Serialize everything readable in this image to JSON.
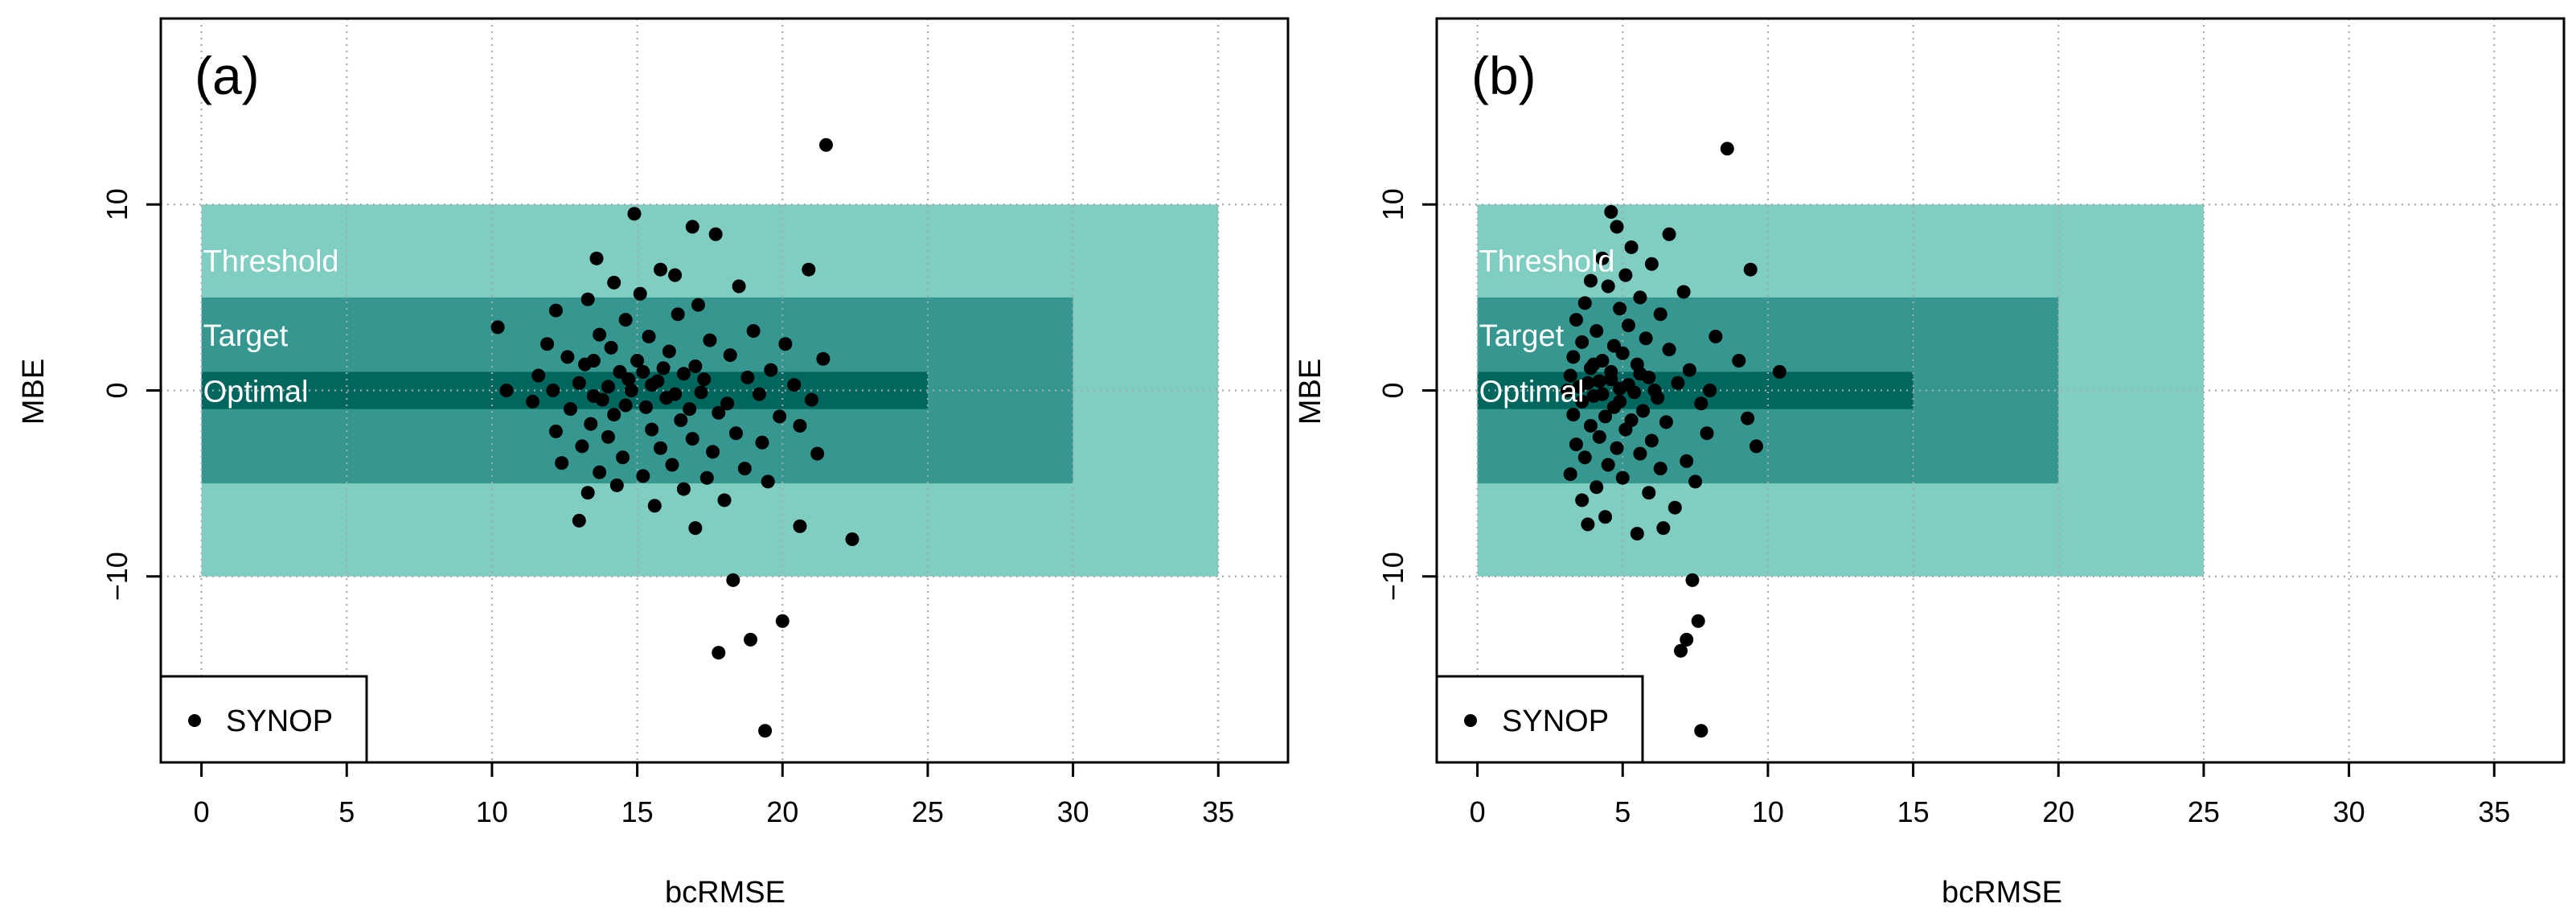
{
  "chart_data": [
    {
      "panel": "(a)",
      "type": "scatter",
      "xlabel": "bcRMSE",
      "ylabel": "MBE",
      "xlim": [
        -1.4,
        37.4
      ],
      "ylim": [
        -20,
        20
      ],
      "xticks": [
        0,
        5,
        10,
        15,
        20,
        25,
        30,
        35
      ],
      "yticks": [
        -10,
        0,
        10
      ],
      "ytick_labels": [
        "−10",
        "0",
        "10"
      ],
      "grid": true,
      "legend": {
        "position": "bottom-left",
        "label": "SYNOP"
      },
      "zones": [
        {
          "name": "Threshold",
          "xmax": 35,
          "ymin": -10,
          "ymax": 10,
          "color": "#80cdc1",
          "label_y": 7
        },
        {
          "name": "Target",
          "xmax": 30,
          "ymin": -5,
          "ymax": 5,
          "color": "#35978f",
          "label_y": 3
        },
        {
          "name": "Optimal",
          "xmax": 25,
          "ymin": -1,
          "ymax": 1,
          "color": "#01665e",
          "label_y": 0
        }
      ],
      "series": [
        {
          "name": "SYNOP",
          "color": "#000000",
          "points": [
            [
              21.5,
              13.2
            ],
            [
              14.9,
              9.5
            ],
            [
              16.9,
              8.8
            ],
            [
              17.7,
              8.4
            ],
            [
              13.6,
              7.1
            ],
            [
              15.8,
              6.5
            ],
            [
              20.9,
              6.5
            ],
            [
              16.3,
              6.2
            ],
            [
              14.2,
              5.8
            ],
            [
              18.5,
              5.6
            ],
            [
              15.1,
              5.2
            ],
            [
              13.3,
              4.9
            ],
            [
              17.1,
              4.6
            ],
            [
              12.2,
              4.3
            ],
            [
              16.4,
              4.1
            ],
            [
              14.6,
              3.8
            ],
            [
              10.2,
              3.4
            ],
            [
              19.0,
              3.2
            ],
            [
              13.7,
              3.0
            ],
            [
              15.4,
              2.9
            ],
            [
              17.5,
              2.7
            ],
            [
              11.9,
              2.5
            ],
            [
              20.1,
              2.5
            ],
            [
              14.1,
              2.3
            ],
            [
              16.1,
              2.1
            ],
            [
              18.2,
              1.9
            ],
            [
              12.6,
              1.8
            ],
            [
              15.0,
              1.6
            ],
            [
              21.4,
              1.7
            ],
            [
              13.2,
              1.4
            ],
            [
              17.0,
              1.3
            ],
            [
              19.6,
              1.1
            ],
            [
              14.4,
              1.0
            ],
            [
              16.6,
              0.9
            ],
            [
              11.6,
              0.8
            ],
            [
              18.8,
              0.7
            ],
            [
              15.7,
              0.5
            ],
            [
              13.0,
              0.4
            ],
            [
              20.4,
              0.3
            ],
            [
              10.5,
              0.0
            ],
            [
              12.1,
              0.0
            ],
            [
              14.8,
              0.0
            ],
            [
              17.2,
              -0.1
            ],
            [
              19.2,
              -0.2
            ],
            [
              13.5,
              -0.3
            ],
            [
              16.0,
              -0.4
            ],
            [
              21.0,
              -0.5
            ],
            [
              11.4,
              -0.6
            ],
            [
              18.1,
              -0.7
            ],
            [
              15.3,
              -0.9
            ],
            [
              12.7,
              -1.0
            ],
            [
              17.8,
              -1.2
            ],
            [
              14.2,
              -1.3
            ],
            [
              19.9,
              -1.4
            ],
            [
              16.5,
              -1.6
            ],
            [
              13.4,
              -1.8
            ],
            [
              20.6,
              -1.9
            ],
            [
              15.5,
              -2.1
            ],
            [
              12.2,
              -2.2
            ],
            [
              18.4,
              -2.3
            ],
            [
              14.0,
              -2.5
            ],
            [
              16.9,
              -2.6
            ],
            [
              19.3,
              -2.8
            ],
            [
              13.1,
              -3.0
            ],
            [
              15.8,
              -3.1
            ],
            [
              17.6,
              -3.3
            ],
            [
              21.2,
              -3.4
            ],
            [
              14.5,
              -3.6
            ],
            [
              12.4,
              -3.9
            ],
            [
              16.2,
              -4.0
            ],
            [
              18.7,
              -4.2
            ],
            [
              13.7,
              -4.4
            ],
            [
              15.2,
              -4.6
            ],
            [
              17.4,
              -4.7
            ],
            [
              19.5,
              -4.9
            ],
            [
              14.3,
              -5.1
            ],
            [
              16.6,
              -5.3
            ],
            [
              13.3,
              -5.5
            ],
            [
              18.0,
              -5.9
            ],
            [
              15.6,
              -6.2
            ],
            [
              13.0,
              -7.0
            ],
            [
              17.0,
              -7.4
            ],
            [
              20.6,
              -7.3
            ],
            [
              22.4,
              -8.0
            ],
            [
              18.3,
              -10.2
            ],
            [
              20.0,
              -12.4
            ],
            [
              18.9,
              -13.4
            ],
            [
              17.8,
              -14.1
            ],
            [
              19.4,
              -18.3
            ],
            [
              14.7,
              0.6
            ],
            [
              15.9,
              1.2
            ],
            [
              13.8,
              -0.5
            ],
            [
              16.8,
              -1.0
            ],
            [
              14.0,
              0.2
            ],
            [
              15.5,
              0.3
            ],
            [
              16.3,
              -0.2
            ],
            [
              14.6,
              -0.8
            ],
            [
              15.2,
              1.0
            ],
            [
              13.5,
              1.6
            ],
            [
              17.3,
              0.6
            ]
          ]
        }
      ]
    },
    {
      "panel": "(b)",
      "type": "scatter",
      "xlabel": "bcRMSE",
      "ylabel": "MBE",
      "xlim": [
        -1.4,
        37.4
      ],
      "ylim": [
        -20,
        20
      ],
      "xticks": [
        0,
        5,
        10,
        15,
        20,
        25,
        30,
        35
      ],
      "yticks": [
        -10,
        0,
        10
      ],
      "ytick_labels": [
        "−10",
        "0",
        "10"
      ],
      "grid": true,
      "legend": {
        "position": "bottom-left",
        "label": "SYNOP"
      },
      "zones": [
        {
          "name": "Threshold",
          "xmax": 25,
          "ymin": -10,
          "ymax": 10,
          "color": "#80cdc1",
          "label_y": 7
        },
        {
          "name": "Target",
          "xmax": 20,
          "ymin": -5,
          "ymax": 5,
          "color": "#35978f",
          "label_y": 3
        },
        {
          "name": "Optimal",
          "xmax": 15,
          "ymin": -1,
          "ymax": 1,
          "color": "#01665e",
          "label_y": 0
        }
      ],
      "series": [
        {
          "name": "SYNOP",
          "color": "#000000",
          "points": [
            [
              8.6,
              13.0
            ],
            [
              4.6,
              9.6
            ],
            [
              4.8,
              8.8
            ],
            [
              6.6,
              8.4
            ],
            [
              5.3,
              7.7
            ],
            [
              4.3,
              7.1
            ],
            [
              6.0,
              6.8
            ],
            [
              9.4,
              6.5
            ],
            [
              5.1,
              6.2
            ],
            [
              3.9,
              5.9
            ],
            [
              4.5,
              5.6
            ],
            [
              7.1,
              5.3
            ],
            [
              5.6,
              5.0
            ],
            [
              3.7,
              4.7
            ],
            [
              4.9,
              4.4
            ],
            [
              6.3,
              4.1
            ],
            [
              3.4,
              3.8
            ],
            [
              5.2,
              3.5
            ],
            [
              4.1,
              3.2
            ],
            [
              8.2,
              2.9
            ],
            [
              5.8,
              2.8
            ],
            [
              3.6,
              2.6
            ],
            [
              4.7,
              2.4
            ],
            [
              6.6,
              2.2
            ],
            [
              5.0,
              2.0
            ],
            [
              3.3,
              1.8
            ],
            [
              4.3,
              1.6
            ],
            [
              9.0,
              1.6
            ],
            [
              5.5,
              1.4
            ],
            [
              3.9,
              1.2
            ],
            [
              7.3,
              1.1
            ],
            [
              4.6,
              1.0
            ],
            [
              10.4,
              1.0
            ],
            [
              3.2,
              0.8
            ],
            [
              5.9,
              0.7
            ],
            [
              4.2,
              0.5
            ],
            [
              6.9,
              0.4
            ],
            [
              3.5,
              0.2
            ],
            [
              4.9,
              0.1
            ],
            [
              8.0,
              0.0
            ],
            [
              3.1,
              0.0
            ],
            [
              5.4,
              -0.1
            ],
            [
              4.0,
              -0.3
            ],
            [
              6.2,
              -0.4
            ],
            [
              3.6,
              -0.6
            ],
            [
              7.7,
              -0.7
            ],
            [
              4.7,
              -0.9
            ],
            [
              5.7,
              -1.1
            ],
            [
              3.3,
              -1.3
            ],
            [
              4.4,
              -1.4
            ],
            [
              9.3,
              -1.5
            ],
            [
              6.5,
              -1.7
            ],
            [
              3.9,
              -1.9
            ],
            [
              5.1,
              -2.1
            ],
            [
              7.9,
              -2.3
            ],
            [
              4.2,
              -2.5
            ],
            [
              6.0,
              -2.7
            ],
            [
              3.4,
              -2.9
            ],
            [
              4.8,
              -3.1
            ],
            [
              9.6,
              -3.0
            ],
            [
              5.6,
              -3.4
            ],
            [
              3.7,
              -3.6
            ],
            [
              7.2,
              -3.8
            ],
            [
              4.5,
              -4.0
            ],
            [
              6.3,
              -4.2
            ],
            [
              3.2,
              -4.5
            ],
            [
              5.0,
              -4.7
            ],
            [
              7.5,
              -4.9
            ],
            [
              4.1,
              -5.2
            ],
            [
              5.9,
              -5.5
            ],
            [
              3.6,
              -5.9
            ],
            [
              6.8,
              -6.3
            ],
            [
              4.4,
              -6.8
            ],
            [
              3.8,
              -7.2
            ],
            [
              5.5,
              -7.7
            ],
            [
              6.4,
              -7.4
            ],
            [
              7.4,
              -10.2
            ],
            [
              7.6,
              -12.4
            ],
            [
              7.2,
              -13.4
            ],
            [
              7.0,
              -14.0
            ],
            [
              7.7,
              -18.3
            ],
            [
              4.6,
              0.6
            ],
            [
              5.2,
              0.3
            ],
            [
              4.3,
              -0.2
            ],
            [
              4.9,
              -0.6
            ],
            [
              5.6,
              0.9
            ],
            [
              3.8,
              0.4
            ],
            [
              6.1,
              0.0
            ],
            [
              4.0,
              1.4
            ],
            [
              5.3,
              -1.6
            ]
          ]
        }
      ]
    }
  ]
}
